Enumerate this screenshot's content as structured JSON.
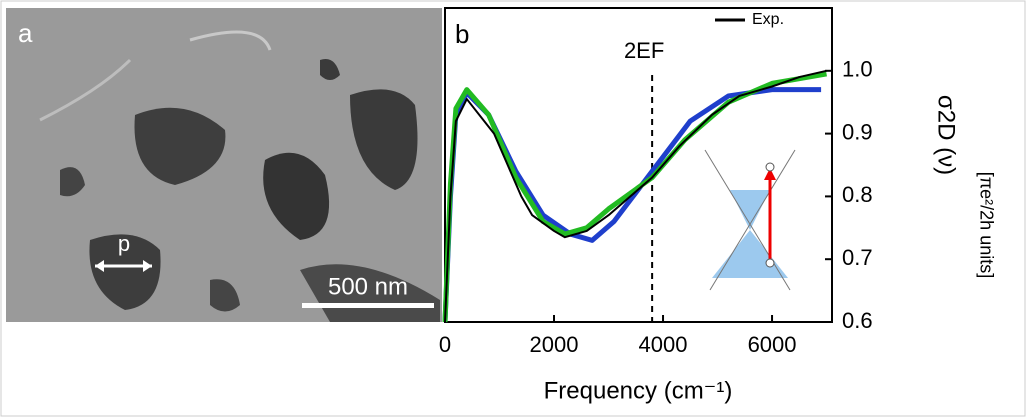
{
  "panel_a": {
    "label": "a",
    "marker": "p",
    "scale_bar": "500 nm"
  },
  "chart_data": {
    "type": "line",
    "panel_label": "b",
    "x_label": "Frequency (cm⁻¹)",
    "y_label": "σ2D (ν)",
    "y_units": "[πe²/2h  units]",
    "xlim": [
      0,
      7100
    ],
    "ylim": [
      0.6,
      1.1
    ],
    "xticks": [
      0,
      2000,
      4000,
      6000
    ],
    "yticks": [
      0.6,
      0.7,
      0.8,
      0.9,
      {
        "value": 1,
        "label": "1.0"
      }
    ],
    "reference_line": {
      "x": 3800,
      "label": "2EF"
    },
    "series": [
      {
        "name": "Exp.",
        "color": "#000000",
        "x": [
          0,
          100,
          200,
          400,
          900,
          1400,
          1600,
          2000,
          2200,
          2600,
          3000,
          3400,
          3800,
          4300,
          4900,
          5400,
          6000,
          6500,
          7000
        ],
        "values": [
          0.6,
          0.8,
          0.92,
          0.955,
          0.9,
          0.8,
          0.77,
          0.745,
          0.735,
          0.745,
          0.77,
          0.8,
          0.83,
          0.88,
          0.93,
          0.96,
          0.975,
          0.99,
          1.0
        ]
      },
      {
        "color": "#22bb22",
        "x": [
          0,
          100,
          200,
          400,
          800,
          1300,
          1800,
          2200,
          2600,
          3000,
          3800,
          4400,
          5200,
          6000,
          7000
        ],
        "values": [
          0.6,
          0.82,
          0.94,
          0.97,
          0.93,
          0.83,
          0.76,
          0.74,
          0.75,
          0.78,
          0.83,
          0.89,
          0.95,
          0.98,
          0.995
        ]
      },
      {
        "color": "#1f3fcc",
        "x": [
          0,
          100,
          200,
          400,
          800,
          1300,
          1800,
          2300,
          2700,
          3100,
          3800,
          4500,
          5200,
          6000,
          6900
        ],
        "values": [
          0.6,
          0.8,
          0.93,
          0.965,
          0.93,
          0.84,
          0.77,
          0.74,
          0.73,
          0.76,
          0.84,
          0.92,
          0.96,
          0.97,
          0.97
        ]
      }
    ]
  }
}
